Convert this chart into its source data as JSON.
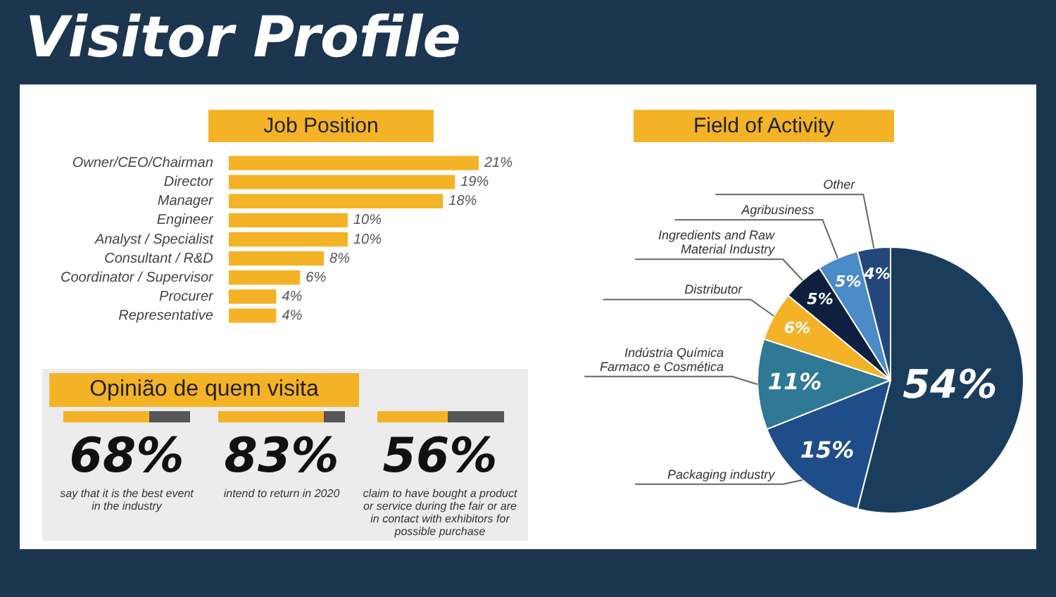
{
  "chart_data": [
    {
      "type": "other",
      "title": "Visitor Profile"
    },
    {
      "type": "bar",
      "title": "Job Position",
      "orientation": "horizontal",
      "categories": [
        "Owner/CEO/Chairman",
        "Director",
        "Manager",
        "Engineer",
        "Analyst / Specialist",
        "Consultant / R&D",
        "Coordinator / Supervisor",
        "Procurer",
        "Representative"
      ],
      "values": [
        21,
        19,
        18,
        10,
        10,
        8,
        6,
        4,
        4
      ],
      "color": "#f4b227",
      "value_labels": [
        "21%",
        "19%",
        "18%",
        "10%",
        "10%",
        "8%",
        "6%",
        "4%",
        "4%"
      ],
      "xlim": [
        0,
        21
      ],
      "tick_labels": "y",
      "legend": false
    },
    {
      "type": "pie",
      "title": "Field of Activity",
      "categories": [
        null,
        "Packaging industry",
        "Indústria Química Farmaco e Cosmética",
        "Distributor",
        "Ingredients and Raw Material Industry",
        "Agribusiness",
        "Other"
      ],
      "values": [
        54,
        15,
        11,
        6,
        5,
        5,
        4
      ],
      "colors": [
        "#1b3d5c",
        "#1f4d8a",
        "#2f7896",
        "#f4b227",
        "#0e1f3f",
        "#4a8bc8",
        "#24477c"
      ],
      "value_labels": [
        "54%",
        "15%",
        "11%",
        "6%",
        "5%",
        "5%",
        "4%"
      ],
      "legend": false
    },
    {
      "type": "other",
      "title": "Opinião de quem visita",
      "categories": [
        "say that it is the best event in the industry",
        "intend to return in 2020",
        "claim to have bought a product or service during the fair or are in contact with exhibitors for possible purchase"
      ],
      "values": [
        68,
        83,
        56
      ],
      "value_labels": [
        "68%",
        "83%",
        "56%"
      ]
    }
  ]
}
